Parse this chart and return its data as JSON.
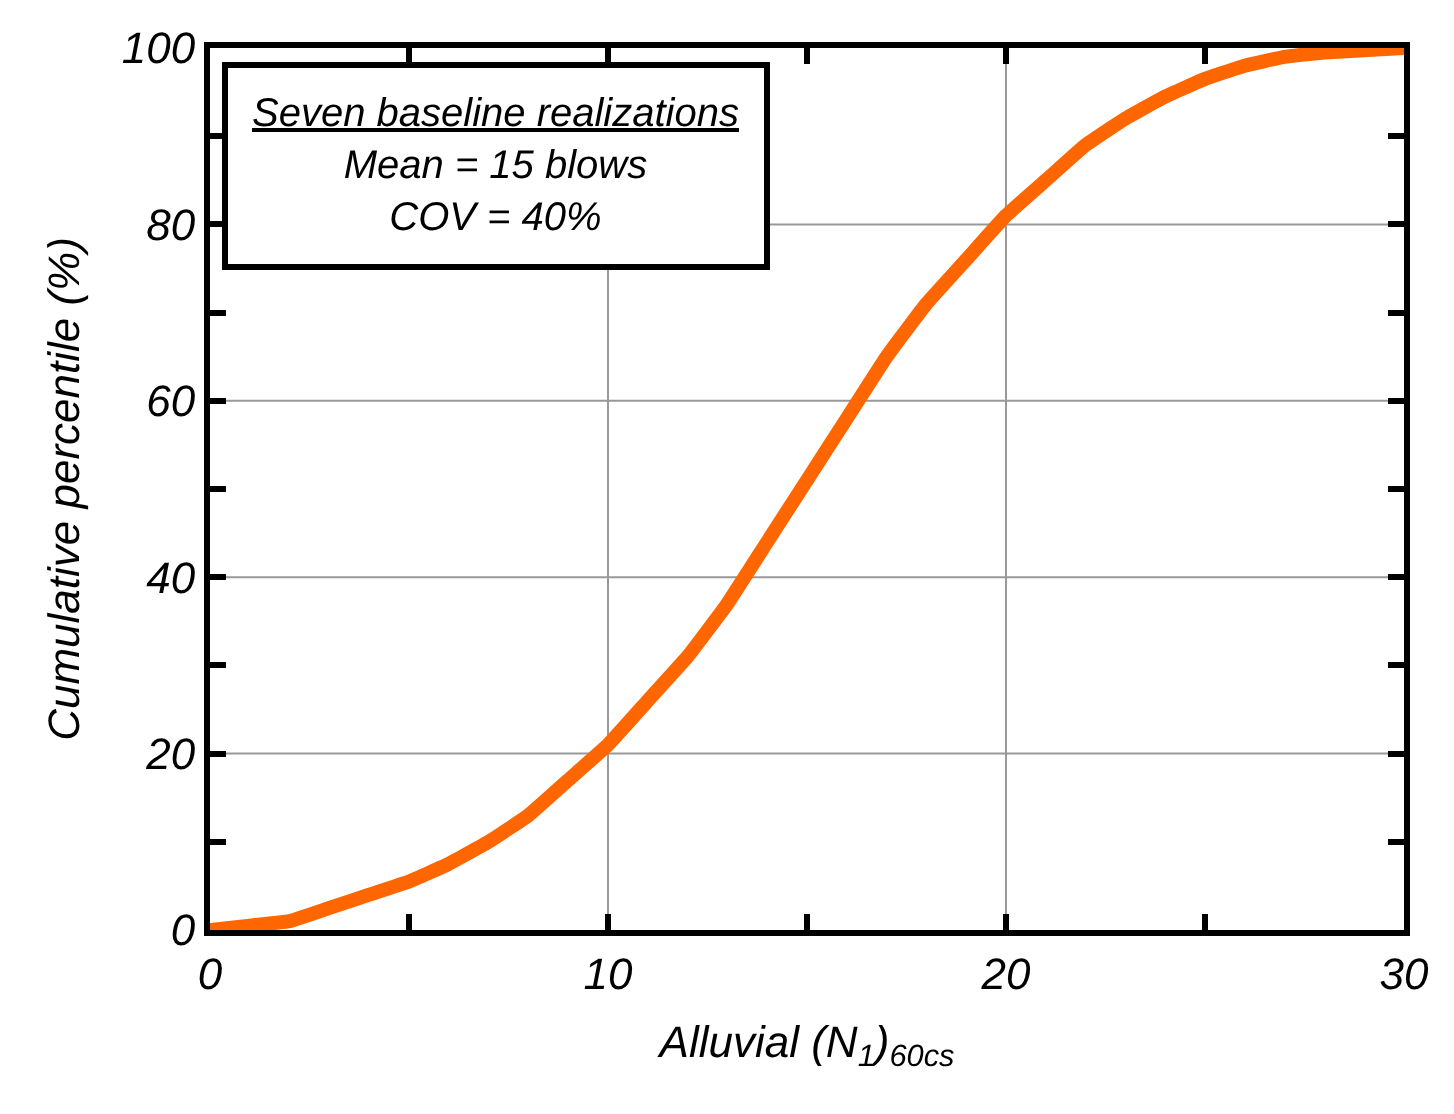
{
  "chart_data": {
    "type": "line",
    "xlabel": "Alluvial (N$_{1}$)$_{60cs}$",
    "ylabel": "Cumulative percentile (%)",
    "annotations": [
      "Seven baseline realizations\nMean = 15 blows\nCOV = 40%"
    ],
    "x": [
      0,
      1,
      2,
      3,
      4,
      5,
      6,
      7,
      8,
      9,
      10,
      11,
      12,
      13,
      14,
      15,
      16,
      17,
      18,
      19,
      20,
      21,
      22,
      23,
      24,
      25,
      26,
      27,
      28,
      30
    ],
    "series": [
      {
        "color": "#ff6600",
        "values": [
          0,
          0.5,
          1,
          2.5,
          4,
          5.5,
          7.5,
          10,
          13,
          17,
          21,
          26,
          31,
          37,
          44,
          51,
          58,
          65,
          71,
          76,
          81,
          85,
          89,
          92,
          94.5,
          96.5,
          98,
          99,
          99.5,
          100
        ]
      }
    ],
    "xlim": [
      0,
      30
    ],
    "ylim": [
      0,
      100
    ],
    "xticks": [
      0,
      {
        "value": 5,
        "label": null
      },
      10,
      {
        "value": 15,
        "label": null
      },
      20,
      {
        "value": 25,
        "label": null
      },
      30
    ],
    "yticks": [
      0,
      {
        "value": 10,
        "label": null
      },
      20,
      {
        "value": 30,
        "label": null
      },
      40,
      {
        "value": 50,
        "label": null
      },
      60,
      {
        "value": 70,
        "label": null
      },
      80,
      {
        "value": 90,
        "label": null
      },
      100
    ],
    "grid": true,
    "line_style": "solid"
  }
}
